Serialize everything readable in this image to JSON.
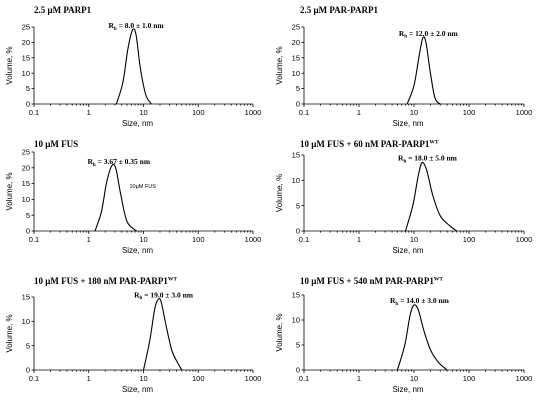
{
  "chart_data": [
    {
      "type": "line",
      "title": "2.5 μM PARP1",
      "title_sup": "",
      "annotation": {
        "main": "R",
        "sub": "h",
        "text": "= 8.0 ± 1.0 nm"
      },
      "inset_label": "",
      "xlabel": "Size, nm",
      "ylabel": "Volume, %",
      "xscale": "log",
      "xlim": [
        0.1,
        1000
      ],
      "xticks": [
        "0.1",
        "1",
        "10",
        "100",
        "1000"
      ],
      "ylim": [
        0,
        25
      ],
      "yticks": [
        0,
        5,
        10,
        15,
        20,
        25
      ],
      "series": [
        {
          "x": [
            3.2,
            4.2,
            5.2,
            6.3,
            7.3,
            8.7,
            11.0,
            14.0
          ],
          "y": [
            0,
            7,
            18,
            24,
            22.5,
            12,
            3,
            0
          ]
        }
      ]
    },
    {
      "type": "line",
      "title": "2.5 μM PAR-PARP1",
      "title_sup": "",
      "annotation": {
        "main": "R",
        "sub": "h",
        "text": "= 12.0 ± 2.0 nm"
      },
      "inset_label": "",
      "xlabel": "Size, nm",
      "ylabel": "Volume, %",
      "xscale": "log",
      "xlim": [
        0.1,
        1000
      ],
      "xticks": [
        "0.1",
        "1",
        "10",
        "100",
        "1000"
      ],
      "ylim": [
        0,
        25
      ],
      "yticks": [
        0,
        5,
        10,
        15,
        20,
        25
      ],
      "series": [
        {
          "x": [
            7.5,
            10.0,
            12.5,
            14.5,
            16.5,
            19.5,
            24.0,
            30.0
          ],
          "y": [
            0,
            6,
            16,
            21.5,
            20,
            11,
            2,
            0
          ]
        }
      ]
    },
    {
      "type": "line",
      "title": "10 μM FUS",
      "title_sup": "",
      "annotation": {
        "main": "R",
        "sub": "h",
        "text": "= 3.67 ± 0.35 nm"
      },
      "inset_label": "10μM FUS",
      "xlabel": "Size, nm",
      "ylabel": "Volume, %",
      "xscale": "log",
      "xlim": [
        0.1,
        1000
      ],
      "xticks": [
        "0.1",
        "1",
        "10",
        "100",
        "1000"
      ],
      "ylim": [
        0,
        25
      ],
      "yticks": [
        0,
        5,
        10,
        15,
        20,
        25
      ],
      "series": [
        {
          "x": [
            1.3,
            1.7,
            2.1,
            2.6,
            3.1,
            3.8,
            5.0,
            7.5
          ],
          "y": [
            0,
            6,
            15,
            20.5,
            20,
            12,
            3,
            0
          ]
        }
      ]
    },
    {
      "type": "line",
      "title": "10 μM FUS + 60 nM PAR-PARP1",
      "title_sup": "WT",
      "annotation": {
        "main": "R",
        "sub": "h",
        "text": "= 18.0 ± 5.0 nm"
      },
      "inset_label": "",
      "xlabel": "Size, nm",
      "ylabel": "Volume, %",
      "xscale": "log",
      "xlim": [
        0.1,
        1000
      ],
      "xticks": [
        "0.1",
        "1",
        "10",
        "100",
        "1000"
      ],
      "ylim": [
        0,
        15
      ],
      "yticks": [
        0,
        5,
        10,
        15
      ],
      "series": [
        {
          "x": [
            7.0,
            9.5,
            12.0,
            14.0,
            17.0,
            22.0,
            30.0,
            45.0,
            60.0
          ],
          "y": [
            0,
            5,
            11,
            13.5,
            12,
            7,
            3,
            1,
            0
          ]
        }
      ]
    },
    {
      "type": "line",
      "title": "10 μM FUS + 180 nM PAR-PARP1",
      "title_sup": "WT",
      "annotation": {
        "main": "R",
        "sub": "h",
        "text": "= 19.0 ± 3.0 nm"
      },
      "inset_label": "",
      "xlabel": "Size, nm",
      "ylabel": "Volume, %",
      "xscale": "log",
      "xlim": [
        0.1,
        1000
      ],
      "xticks": [
        "0.1",
        "1",
        "10",
        "100",
        "1000"
      ],
      "ylim": [
        0,
        15
      ],
      "yticks": [
        0,
        5,
        10,
        15
      ],
      "series": [
        {
          "x": [
            10.0,
            13.0,
            16.0,
            18.5,
            21.0,
            26.0,
            33.0,
            42.0,
            50.0
          ],
          "y": [
            0,
            6,
            12.5,
            14.5,
            14,
            9,
            4,
            1.5,
            0
          ]
        }
      ]
    },
    {
      "type": "line",
      "title": "10 μM FUS + 540 nM PAR-PARP1",
      "title_sup": "WT",
      "annotation": {
        "main": "R",
        "sub": "h",
        "text": "= 14.0 ± 3.0 nm"
      },
      "inset_label": "",
      "xlabel": "Size, nm",
      "ylabel": "Volume, %",
      "xscale": "log",
      "xlim": [
        0.1,
        1000
      ],
      "xticks": [
        "0.1",
        "1",
        "10",
        "100",
        "1000"
      ],
      "ylim": [
        0,
        15
      ],
      "yticks": [
        0,
        5,
        10,
        15
      ],
      "series": [
        {
          "x": [
            5.0,
            6.8,
            8.5,
            10.0,
            12.0,
            15.0,
            20.0,
            28.0,
            40.0
          ],
          "y": [
            0,
            5,
            11,
            13,
            12,
            8,
            4,
            1.5,
            0
          ]
        }
      ]
    }
  ]
}
